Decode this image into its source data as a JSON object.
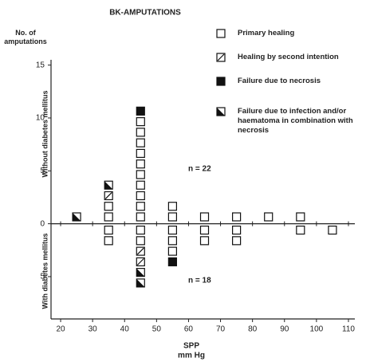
{
  "chart_data": {
    "type": "pictograph",
    "title": "BK-AMPUTATIONS",
    "ylabel": "No. of amputations",
    "xlabel": "SPP",
    "xunit": "mm Hg",
    "upper_label": "Without diabetes mellitus",
    "lower_label": "With diabetes mellitus",
    "upper_annotation": "n = 22",
    "lower_annotation": "n = 18",
    "x": [
      25,
      35,
      45,
      55,
      65,
      75,
      85,
      95,
      105
    ],
    "series": [
      {
        "name": "Primary healing",
        "pattern": "empty",
        "color": "#111111",
        "values": [
          0,
          2,
          10,
          2,
          1,
          1,
          1,
          1,
          0
        ],
        "values_diabetes": [
          0,
          2,
          2,
          3,
          2,
          2,
          0,
          1,
          1
        ]
      },
      {
        "name": "Healing by second intention",
        "pattern": "hatch",
        "color": "#111111",
        "values": [
          0,
          1,
          0,
          0,
          0,
          0,
          0,
          0,
          0
        ],
        "values_diabetes": [
          0,
          0,
          2,
          0,
          0,
          0,
          0,
          0,
          0
        ]
      },
      {
        "name": "Failure due to necrosis",
        "pattern": "solid",
        "color": "#111111",
        "values": [
          0,
          0,
          1,
          0,
          0,
          0,
          0,
          0,
          0
        ],
        "values_diabetes": [
          0,
          0,
          0,
          1,
          0,
          0,
          0,
          0,
          0
        ]
      },
      {
        "name": "Failure due to infection and/or haematoma in combination with necrosis",
        "pattern": "half",
        "color": "#111111",
        "values": [
          1,
          1,
          0,
          0,
          0,
          0,
          0,
          0,
          0
        ],
        "values_diabetes": [
          0,
          0,
          2,
          0,
          0,
          0,
          0,
          0,
          0
        ]
      }
    ],
    "xlim": [
      17,
      112
    ],
    "xticks": [
      20,
      30,
      40,
      50,
      60,
      70,
      80,
      90,
      100,
      110
    ],
    "ylim": [
      -9,
      15.5
    ],
    "yticks": [
      15,
      10,
      5,
      0,
      {
        "value": -5,
        "label": "5"
      }
    ]
  }
}
